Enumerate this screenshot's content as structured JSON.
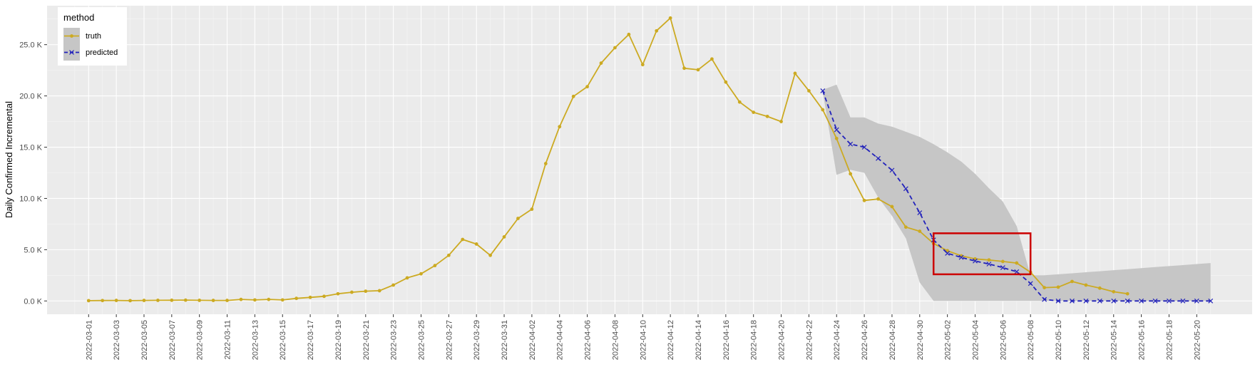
{
  "chart_data": {
    "type": "line",
    "ylabel": "Daily Confirmed Incremental",
    "xlabel": "",
    "ylim": [
      -1300,
      28800
    ],
    "yticks": [
      0,
      5000,
      10000,
      15000,
      20000,
      25000
    ],
    "ytick_labels": [
      "0.0 K",
      "5.0 K",
      "10.0 K",
      "15.0 K",
      "20.0 K",
      "25.0 K"
    ],
    "xlim": [
      "2022-02-26",
      "2022-05-24"
    ],
    "xtick_labels": [
      "2022-03-01",
      "2022-03-03",
      "2022-03-05",
      "2022-03-07",
      "2022-03-09",
      "2022-03-11",
      "2022-03-13",
      "2022-03-15",
      "2022-03-17",
      "2022-03-19",
      "2022-03-21",
      "2022-03-23",
      "2022-03-25",
      "2022-03-27",
      "2022-03-29",
      "2022-03-31",
      "2022-04-02",
      "2022-04-04",
      "2022-04-06",
      "2022-04-08",
      "2022-04-10",
      "2022-04-12",
      "2022-04-14",
      "2022-04-16",
      "2022-04-18",
      "2022-04-20",
      "2022-04-22",
      "2022-04-24",
      "2022-04-26",
      "2022-04-28",
      "2022-04-30",
      "2022-05-02",
      "2022-05-04",
      "2022-05-06",
      "2022-05-08",
      "2022-05-10",
      "2022-05-12",
      "2022-05-14",
      "2022-05-16",
      "2022-05-18",
      "2022-05-20"
    ],
    "grid": true,
    "legend": {
      "title": "method",
      "position": "top-left",
      "entries": [
        {
          "label": "truth",
          "color": "#ccaa22",
          "marker": "dot",
          "line": "solid"
        },
        {
          "label": "predicted",
          "color": "#2222bb",
          "marker": "x",
          "line": "dashed"
        }
      ]
    },
    "series": [
      {
        "name": "truth",
        "color": "#ccaa22",
        "start_date": "2022-03-01",
        "values": [
          30,
          40,
          50,
          30,
          50,
          60,
          70,
          80,
          60,
          50,
          50,
          150,
          100,
          150,
          100,
          250,
          350,
          450,
          700,
          850,
          950,
          1000,
          1550,
          2250,
          2650,
          3450,
          4450,
          6000,
          5550,
          4450,
          6250,
          8050,
          8950,
          13400,
          17000,
          19950,
          20900,
          23200,
          24700,
          26000,
          23050,
          26350,
          27600,
          22700,
          22550,
          23600,
          21350,
          19400,
          18400,
          18000,
          17500,
          22200,
          20500,
          18650,
          15850,
          12400,
          9800,
          9950,
          9200,
          7200,
          6800,
          5600,
          4900,
          4400,
          4100,
          4000,
          3850,
          3700,
          2800,
          1300,
          1350,
          1900,
          1550,
          1250,
          900,
          700
        ]
      },
      {
        "name": "predicted",
        "color": "#2222bb",
        "start_date": "2022-04-23",
        "values": [
          20500,
          16700,
          15300,
          15000,
          13900,
          12750,
          10950,
          8600,
          5950,
          4650,
          4250,
          3900,
          3600,
          3250,
          2850,
          1700,
          150,
          0,
          0,
          0,
          0,
          0,
          0,
          0,
          0,
          0,
          0,
          0,
          0
        ]
      }
    ],
    "confidence_band": {
      "start_date": "2022-04-23",
      "lower": [
        20400,
        12300,
        12800,
        12500,
        10100,
        8300,
        6100,
        1800,
        0,
        0,
        0,
        0,
        0,
        0,
        0,
        0,
        0,
        0,
        0,
        0,
        0,
        0,
        0,
        0,
        0,
        0,
        0,
        0,
        0
      ],
      "upper": [
        20600,
        21100,
        17900,
        17900,
        17300,
        17000,
        16500,
        16000,
        15300,
        14500,
        13600,
        12400,
        11000,
        9700,
        7300,
        2500,
        2500,
        2600,
        2700,
        2800,
        2900,
        3000,
        3100,
        3200,
        3300,
        3400,
        3500,
        3600,
        3700
      ],
      "color": "#c6c6c6"
    },
    "highlight_box": {
      "date_from": "2022-05-01",
      "date_to": "2022-05-08",
      "y_from": 2600,
      "y_to": 6600,
      "color": "#cc0000"
    }
  }
}
